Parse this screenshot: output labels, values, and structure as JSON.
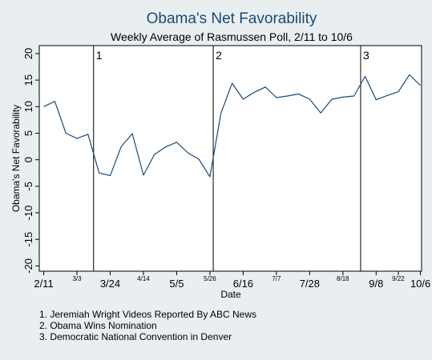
{
  "chart_data": {
    "type": "line",
    "title": "Obama's Net Favorability",
    "subtitle": "Weekly Average of Rasmussen Poll, 2/11 to 10/6",
    "xlabel": "Date",
    "ylabel": "Obama's Net Favorability",
    "ylim": [
      -21,
      21.5
    ],
    "yticks": [
      -20,
      -15,
      -10,
      -5,
      0,
      5,
      10,
      15,
      20
    ],
    "ytick_labels": [
      "-20",
      "-15",
      "-10",
      "-5",
      "0",
      "5",
      "10",
      "15",
      "20"
    ],
    "xticks": [
      {
        "week": 0,
        "label": "2/11",
        "size": "large"
      },
      {
        "week": 3,
        "label": "3/3",
        "size": "small"
      },
      {
        "week": 6,
        "label": "3/24",
        "size": "large"
      },
      {
        "week": 9,
        "label": "4/14",
        "size": "small"
      },
      {
        "week": 12,
        "label": "5/5",
        "size": "large"
      },
      {
        "week": 15,
        "label": "5/26",
        "size": "small"
      },
      {
        "week": 18,
        "label": "6/16",
        "size": "large"
      },
      {
        "week": 21,
        "label": "7/7",
        "size": "small"
      },
      {
        "week": 24,
        "label": "7/28",
        "size": "large"
      },
      {
        "week": 27,
        "label": "8/18",
        "size": "small"
      },
      {
        "week": 30,
        "label": "9/8",
        "size": "large"
      },
      {
        "week": 32,
        "label": "9/22",
        "size": "small"
      },
      {
        "week": 34,
        "label": "10/6",
        "size": "large"
      }
    ],
    "series": [
      {
        "color": "#1a4a78",
        "x": [
          0,
          1,
          2,
          3,
          4,
          5,
          6,
          7,
          8,
          9,
          10,
          11,
          12,
          13,
          14,
          15,
          16,
          17,
          18,
          19,
          20,
          21,
          22,
          23,
          24,
          25,
          26,
          27,
          28,
          29,
          30,
          31,
          32,
          33,
          34
        ],
        "values": [
          10,
          11,
          5,
          4,
          4.8,
          -2.5,
          -3,
          2.5,
          4.9,
          -2.9,
          1,
          2.4,
          3.3,
          1.3,
          0.1,
          -3.2,
          8.8,
          14.4,
          11.4,
          12.7,
          13.7,
          11.7,
          12,
          12.4,
          11.4,
          8.8,
          11.4,
          11.8,
          12,
          15.7,
          11.3,
          12.1,
          12.8,
          16,
          14
        ]
      }
    ],
    "events": [
      {
        "week": 4.5,
        "label": "1"
      },
      {
        "week": 15.3,
        "label": "2"
      },
      {
        "week": 28.6,
        "label": "3"
      }
    ],
    "notes": [
      "1. Jeremiah Wright Videos Reported By ABC News",
      "2. Obama Wins Nomination",
      "3. Democratic National Convention in Denver"
    ],
    "grid": false,
    "legend": "none"
  }
}
